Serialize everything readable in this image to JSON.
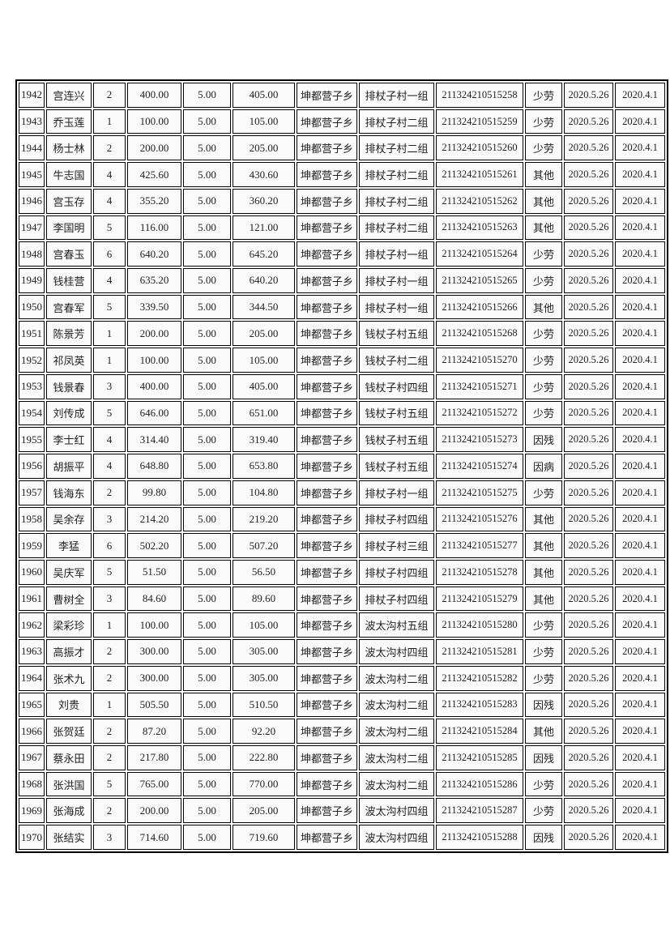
{
  "page": {
    "background_color": "#ffffff",
    "border_color": "#000000",
    "cell_background": "#fafafa",
    "text_color": "#222222"
  },
  "table": {
    "column_keys": [
      "row-number",
      "name",
      "household-size",
      "base-amount",
      "supplement-amount",
      "total-amount",
      "township",
      "village-group",
      "id-number",
      "category",
      "issue-date",
      "start-date"
    ],
    "rows": [
      [
        "1942",
        "宫连兴",
        "2",
        "400.00",
        "5.00",
        "405.00",
        "坤都营子乡",
        "排杖子村一组",
        "211324210515258",
        "少劳",
        "2020.5.26",
        "2020.4.1"
      ],
      [
        "1943",
        "乔玉莲",
        "1",
        "100.00",
        "5.00",
        "105.00",
        "坤都营子乡",
        "排杖子村二组",
        "211324210515259",
        "少劳",
        "2020.5.26",
        "2020.4.1"
      ],
      [
        "1944",
        "杨士林",
        "2",
        "200.00",
        "5.00",
        "205.00",
        "坤都营子乡",
        "排杖子村二组",
        "211324210515260",
        "少劳",
        "2020.5.26",
        "2020.4.1"
      ],
      [
        "1945",
        "牛志国",
        "4",
        "425.60",
        "5.00",
        "430.60",
        "坤都营子乡",
        "排杖子村二组",
        "211324210515261",
        "其他",
        "2020.5.26",
        "2020.4.1"
      ],
      [
        "1946",
        "宫玉存",
        "4",
        "355.20",
        "5.00",
        "360.20",
        "坤都营子乡",
        "排杖子村二组",
        "211324210515262",
        "其他",
        "2020.5.26",
        "2020.4.1"
      ],
      [
        "1947",
        "李国明",
        "5",
        "116.00",
        "5.00",
        "121.00",
        "坤都营子乡",
        "排杖子村二组",
        "211324210515263",
        "其他",
        "2020.5.26",
        "2020.4.1"
      ],
      [
        "1948",
        "宫春玉",
        "6",
        "640.20",
        "5.00",
        "645.20",
        "坤都营子乡",
        "排杖子村一组",
        "211324210515264",
        "少劳",
        "2020.5.26",
        "2020.4.1"
      ],
      [
        "1949",
        "钱桂营",
        "4",
        "635.20",
        "5.00",
        "640.20",
        "坤都营子乡",
        "排杖子村一组",
        "211324210515265",
        "少劳",
        "2020.5.26",
        "2020.4.1"
      ],
      [
        "1950",
        "宫春军",
        "5",
        "339.50",
        "5.00",
        "344.50",
        "坤都营子乡",
        "排杖子村一组",
        "211324210515266",
        "其他",
        "2020.5.26",
        "2020.4.1"
      ],
      [
        "1951",
        "陈景芳",
        "1",
        "200.00",
        "5.00",
        "205.00",
        "坤都营子乡",
        "钱杖子村五组",
        "211324210515268",
        "少劳",
        "2020.5.26",
        "2020.4.1"
      ],
      [
        "1952",
        "祁凤英",
        "1",
        "100.00",
        "5.00",
        "105.00",
        "坤都营子乡",
        "钱杖子村二组",
        "211324210515270",
        "少劳",
        "2020.5.26",
        "2020.4.1"
      ],
      [
        "1953",
        "钱景春",
        "3",
        "400.00",
        "5.00",
        "405.00",
        "坤都营子乡",
        "钱杖子村四组",
        "211324210515271",
        "少劳",
        "2020.5.26",
        "2020.4.1"
      ],
      [
        "1954",
        "刘传成",
        "5",
        "646.00",
        "5.00",
        "651.00",
        "坤都营子乡",
        "钱杖子村五组",
        "211324210515272",
        "少劳",
        "2020.5.26",
        "2020.4.1"
      ],
      [
        "1955",
        "李士红",
        "4",
        "314.40",
        "5.00",
        "319.40",
        "坤都营子乡",
        "钱杖子村五组",
        "211324210515273",
        "因残",
        "2020.5.26",
        "2020.4.1"
      ],
      [
        "1956",
        "胡振平",
        "4",
        "648.80",
        "5.00",
        "653.80",
        "坤都营子乡",
        "钱杖子村五组",
        "211324210515274",
        "因病",
        "2020.5.26",
        "2020.4.1"
      ],
      [
        "1957",
        "钱海东",
        "2",
        "99.80",
        "5.00",
        "104.80",
        "坤都营子乡",
        "排杖子村一组",
        "211324210515275",
        "少劳",
        "2020.5.26",
        "2020.4.1"
      ],
      [
        "1958",
        "吴余存",
        "3",
        "214.20",
        "5.00",
        "219.20",
        "坤都营子乡",
        "排杖子村四组",
        "211324210515276",
        "其他",
        "2020.5.26",
        "2020.4.1"
      ],
      [
        "1959",
        "李猛",
        "6",
        "502.20",
        "5.00",
        "507.20",
        "坤都营子乡",
        "排杖子村三组",
        "211324210515277",
        "其他",
        "2020.5.26",
        "2020.4.1"
      ],
      [
        "1960",
        "吴庆军",
        "5",
        "51.50",
        "5.00",
        "56.50",
        "坤都营子乡",
        "排杖子村四组",
        "211324210515278",
        "其他",
        "2020.5.26",
        "2020.4.1"
      ],
      [
        "1961",
        "曹树全",
        "3",
        "84.60",
        "5.00",
        "89.60",
        "坤都营子乡",
        "排杖子村四组",
        "211324210515279",
        "其他",
        "2020.5.26",
        "2020.4.1"
      ],
      [
        "1962",
        "梁彩珍",
        "1",
        "100.00",
        "5.00",
        "105.00",
        "坤都营子乡",
        "波太沟村五组",
        "211324210515280",
        "少劳",
        "2020.5.26",
        "2020.4.1"
      ],
      [
        "1963",
        "高振才",
        "2",
        "300.00",
        "5.00",
        "305.00",
        "坤都营子乡",
        "波太沟村四组",
        "211324210515281",
        "少劳",
        "2020.5.26",
        "2020.4.1"
      ],
      [
        "1964",
        "张术九",
        "2",
        "300.00",
        "5.00",
        "305.00",
        "坤都营子乡",
        "波太沟村二组",
        "211324210515282",
        "少劳",
        "2020.5.26",
        "2020.4.1"
      ],
      [
        "1965",
        "刘贵",
        "1",
        "505.50",
        "5.00",
        "510.50",
        "坤都营子乡",
        "波太沟村二组",
        "211324210515283",
        "因残",
        "2020.5.26",
        "2020.4.1"
      ],
      [
        "1966",
        "张贺廷",
        "2",
        "87.20",
        "5.00",
        "92.20",
        "坤都营子乡",
        "波太沟村二组",
        "211324210515284",
        "其他",
        "2020.5.26",
        "2020.4.1"
      ],
      [
        "1967",
        "蔡永田",
        "2",
        "217.80",
        "5.00",
        "222.80",
        "坤都营子乡",
        "波太沟村二组",
        "211324210515285",
        "因残",
        "2020.5.26",
        "2020.4.1"
      ],
      [
        "1968",
        "张洪国",
        "5",
        "765.00",
        "5.00",
        "770.00",
        "坤都营子乡",
        "波太沟村二组",
        "211324210515286",
        "少劳",
        "2020.5.26",
        "2020.4.1"
      ],
      [
        "1969",
        "张海成",
        "2",
        "200.00",
        "5.00",
        "205.00",
        "坤都营子乡",
        "波太沟村四组",
        "211324210515287",
        "少劳",
        "2020.5.26",
        "2020.4.1"
      ],
      [
        "1970",
        "张结实",
        "3",
        "714.60",
        "5.00",
        "719.60",
        "坤都营子乡",
        "波太沟村四组",
        "211324210515288",
        "因残",
        "2020.5.26",
        "2020.4.1"
      ]
    ]
  }
}
